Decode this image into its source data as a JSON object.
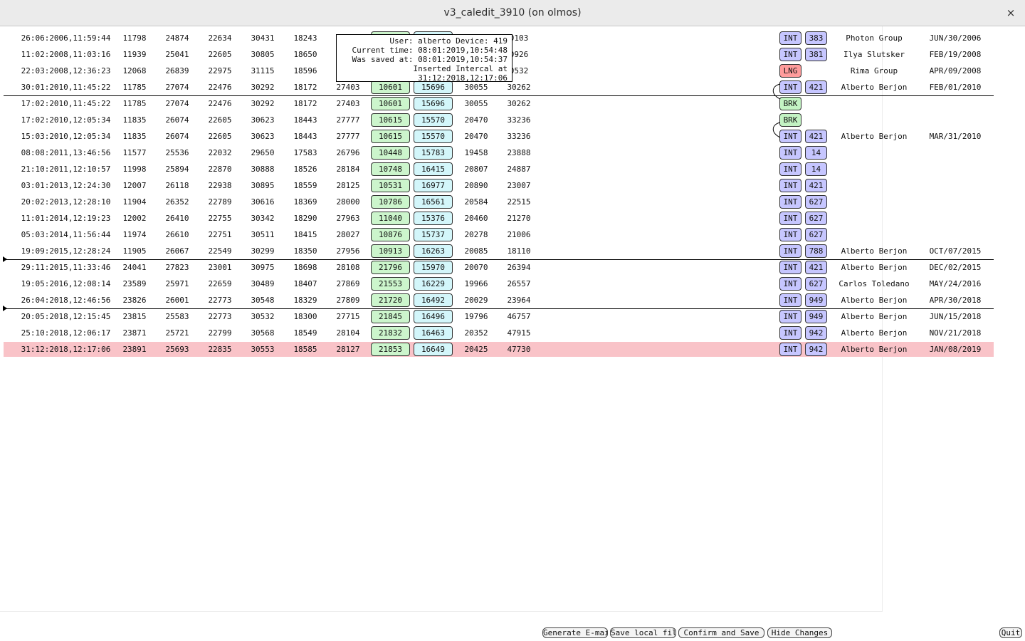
{
  "window": {
    "title": "v3_caledit_3910 (on olmos)",
    "close_glyph": "×"
  },
  "tooltip": {
    "lines": [
      "User: alberto Device: 419",
      "Current time: 08:01:2019,10:54:48",
      "Was saved at: 08:01:2019,10:54:37",
      "Inserted Intercal at 31:12:2018,12:17:06"
    ]
  },
  "rows": [
    {
      "date": "26:06:2006,11:59:44",
      "n1": "11798",
      "n2": "24874",
      "n3": "22634",
      "n4": "30431",
      "n5": "18243",
      "n6": "",
      "v1": "",
      "v2": "",
      "n7": "",
      "n8": "0103",
      "tag": "INT",
      "tag_color": "blue",
      "num": "383",
      "who": "Photon Group",
      "when": "JUN/30/2006",
      "tooltip_covered": true
    },
    {
      "date": "11:02:2008,11:03:16",
      "n1": "11939",
      "n2": "25041",
      "n3": "22605",
      "n4": "30805",
      "n5": "18650",
      "n6": "",
      "v1": "",
      "v2": "",
      "n7": "",
      "n8": "0926",
      "tag": "INT",
      "tag_color": "blue",
      "num": "381",
      "who": "Ilya Slutsker",
      "when": "FEB/19/2008",
      "tooltip_covered": true
    },
    {
      "date": "22:03:2008,12:36:23",
      "n1": "12068",
      "n2": "26839",
      "n3": "22975",
      "n4": "31115",
      "n5": "18596",
      "n6": "",
      "v1": "",
      "v2": "",
      "n7": "",
      "n8": "0532",
      "tag": "LNG",
      "tag_color": "red",
      "num": "",
      "who": "Rima Group",
      "when": "APR/09/2008",
      "tooltip_covered": true
    },
    {
      "date": "30:01:2010,11:45:22",
      "n1": "11785",
      "n2": "27074",
      "n3": "22476",
      "n4": "30292",
      "n5": "18172",
      "n6": "27403",
      "v1": "10601",
      "v2": "15696",
      "n7": "30055",
      "n8": "30262",
      "tag": "INT",
      "tag_color": "blue",
      "num": "421",
      "who": "Alberto Berjon",
      "when": "FEB/01/2010"
    },
    {
      "date": "17:02:2010,11:45:22",
      "n1": "11785",
      "n2": "27074",
      "n3": "22476",
      "n4": "30292",
      "n5": "18172",
      "n6": "27403",
      "v1": "10601",
      "v2": "15696",
      "n7": "30055",
      "n8": "30262",
      "tag": "BRK",
      "tag_color": "bgreen",
      "num": "",
      "who": "",
      "when": ""
    },
    {
      "date": "17:02:2010,12:05:34",
      "n1": "11835",
      "n2": "26074",
      "n3": "22605",
      "n4": "30623",
      "n5": "18443",
      "n6": "27777",
      "v1": "10615",
      "v2": "15570",
      "n7": "20470",
      "n8": "33236",
      "tag": "BRK",
      "tag_color": "bgreen",
      "num": "",
      "who": "",
      "when": ""
    },
    {
      "date": "15:03:2010,12:05:34",
      "n1": "11835",
      "n2": "26074",
      "n3": "22605",
      "n4": "30623",
      "n5": "18443",
      "n6": "27777",
      "v1": "10615",
      "v2": "15570",
      "n7": "20470",
      "n8": "33236",
      "tag": "INT",
      "tag_color": "blue",
      "num": "421",
      "who": "Alberto Berjon",
      "when": "MAR/31/2010"
    },
    {
      "date": "08:08:2011,13:46:56",
      "n1": "11577",
      "n2": "25536",
      "n3": "22032",
      "n4": "29650",
      "n5": "17583",
      "n6": "26796",
      "v1": "10448",
      "v2": "15783",
      "n7": "19458",
      "n8": "23888",
      "tag": "INT",
      "tag_color": "blue",
      "num": "14",
      "who": "",
      "when": ""
    },
    {
      "date": "21:10:2011,12:10:57",
      "n1": "11998",
      "n2": "25894",
      "n3": "22870",
      "n4": "30888",
      "n5": "18526",
      "n6": "28184",
      "v1": "10748",
      "v2": "16415",
      "n7": "20807",
      "n8": "24887",
      "tag": "INT",
      "tag_color": "blue",
      "num": "14",
      "who": "",
      "when": ""
    },
    {
      "date": "03:01:2013,12:24:30",
      "n1": "12007",
      "n2": "26118",
      "n3": "22938",
      "n4": "30895",
      "n5": "18559",
      "n6": "28125",
      "v1": "10531",
      "v2": "16977",
      "n7": "20890",
      "n8": "23007",
      "tag": "INT",
      "tag_color": "blue",
      "num": "421",
      "who": "",
      "when": ""
    },
    {
      "date": "20:02:2013,12:28:10",
      "n1": "11904",
      "n2": "26352",
      "n3": "22789",
      "n4": "30616",
      "n5": "18369",
      "n6": "28000",
      "v1": "10786",
      "v2": "16561",
      "n7": "20584",
      "n8": "22515",
      "tag": "INT",
      "tag_color": "blue",
      "num": "627",
      "who": "",
      "when": ""
    },
    {
      "date": "11:01:2014,12:19:23",
      "n1": "12002",
      "n2": "26410",
      "n3": "22755",
      "n4": "30342",
      "n5": "18290",
      "n6": "27963",
      "v1": "11040",
      "v2": "15376",
      "n7": "20460",
      "n8": "21270",
      "tag": "INT",
      "tag_color": "blue",
      "num": "627",
      "who": "",
      "when": ""
    },
    {
      "date": "05:03:2014,11:56:44",
      "n1": "11974",
      "n2": "26610",
      "n3": "22751",
      "n4": "30511",
      "n5": "18415",
      "n6": "28027",
      "v1": "10876",
      "v2": "15737",
      "n7": "20278",
      "n8": "21006",
      "tag": "INT",
      "tag_color": "blue",
      "num": "627",
      "who": "",
      "when": ""
    },
    {
      "date": "19:09:2015,12:28:24",
      "n1": "11905",
      "n2": "26067",
      "n3": "22549",
      "n4": "30299",
      "n5": "18350",
      "n6": "27956",
      "v1": "10913",
      "v2": "16263",
      "n7": "20085",
      "n8": "18110",
      "tag": "INT",
      "tag_color": "blue",
      "num": "788",
      "who": "Alberto Berjon",
      "when": "OCT/07/2015"
    },
    {
      "date": "29:11:2015,11:33:46",
      "n1": "24041",
      "n2": "27823",
      "n3": "23001",
      "n4": "30975",
      "n5": "18698",
      "n6": "28108",
      "v1": "21796",
      "v2": "15970",
      "n7": "20070",
      "n8": "26394",
      "tag": "INT",
      "tag_color": "blue",
      "num": "421",
      "who": "Alberto Berjon",
      "when": "DEC/02/2015"
    },
    {
      "date": "19:05:2016,12:08:14",
      "n1": "23589",
      "n2": "25971",
      "n3": "22659",
      "n4": "30489",
      "n5": "18407",
      "n6": "27869",
      "v1": "21553",
      "v2": "16229",
      "n7": "19966",
      "n8": "26557",
      "tag": "INT",
      "tag_color": "blue",
      "num": "627",
      "who": "Carlos Toledano",
      "when": "MAY/24/2016"
    },
    {
      "date": "26:04:2018,12:46:56",
      "n1": "23826",
      "n2": "26001",
      "n3": "22773",
      "n4": "30548",
      "n5": "18329",
      "n6": "27809",
      "v1": "21720",
      "v2": "16492",
      "n7": "20029",
      "n8": "23964",
      "tag": "INT",
      "tag_color": "blue",
      "num": "949",
      "who": "Alberto Berjon",
      "when": "APR/30/2018"
    },
    {
      "date": "20:05:2018,12:15:45",
      "n1": "23815",
      "n2": "25583",
      "n3": "22773",
      "n4": "30532",
      "n5": "18300",
      "n6": "27715",
      "v1": "21845",
      "v2": "16496",
      "n7": "19796",
      "n8": "46757",
      "tag": "INT",
      "tag_color": "blue",
      "num": "949",
      "who": "Alberto Berjon",
      "when": "JUN/15/2018"
    },
    {
      "date": "25:10:2018,12:06:17",
      "n1": "23871",
      "n2": "25721",
      "n3": "22799",
      "n4": "30568",
      "n5": "18549",
      "n6": "28104",
      "v1": "21832",
      "v2": "16463",
      "n7": "20352",
      "n8": "47915",
      "tag": "INT",
      "tag_color": "blue",
      "num": "942",
      "who": "Alberto Berjon",
      "when": "NOV/21/2018"
    },
    {
      "date": "31:12:2018,12:17:06",
      "n1": "23891",
      "n2": "25693",
      "n3": "22835",
      "n4": "30553",
      "n5": "18585",
      "n6": "28127",
      "v1": "21853",
      "v2": "16649",
      "n7": "20425",
      "n8": "47730",
      "tag": "INT",
      "tag_color": "blue",
      "num": "942",
      "who": "Alberto Berjon",
      "when": "JAN/08/2019",
      "highlight": true
    }
  ],
  "buttons": {
    "email": "Generate E-mail",
    "save_local": "Save local file",
    "confirm": "Confirm and Save",
    "hide": "Hide Changes",
    "quit": "Quit"
  }
}
